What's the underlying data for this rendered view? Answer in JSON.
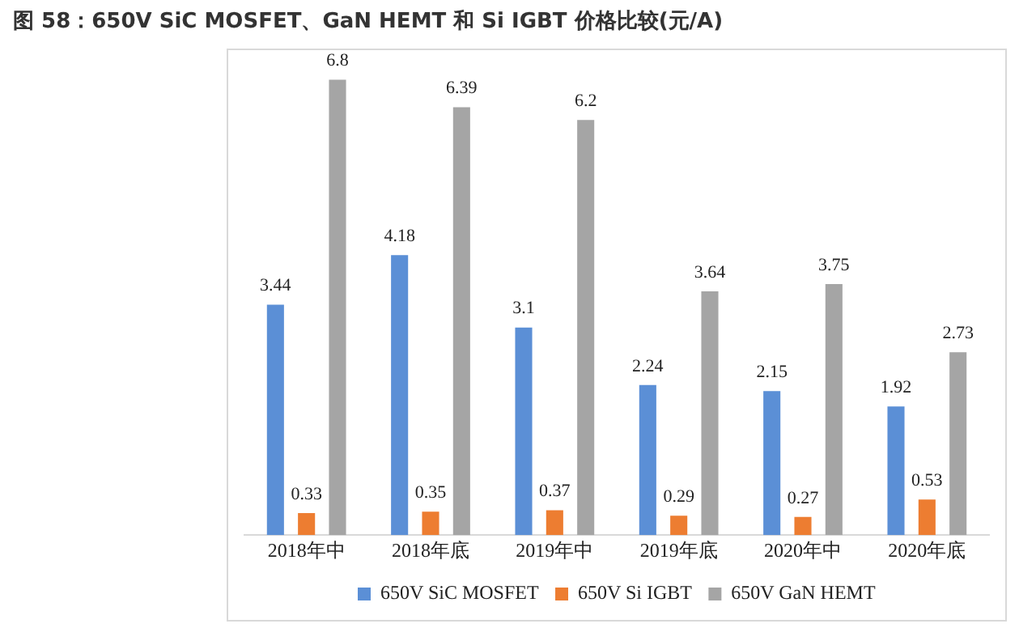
{
  "chart_data": {
    "type": "bar",
    "title": "图 58：650V SiC MOSFET、GaN HEMT 和 Si IGBT 价格比较(元/A)",
    "categories": [
      "2018年中",
      "2018年底",
      "2019年中",
      "2019年底",
      "2020年中",
      "2020年底"
    ],
    "series": [
      {
        "name": "650V SiC MOSFET",
        "color": "#5b8fd6",
        "values": [
          3.44,
          4.18,
          3.1,
          2.24,
          2.15,
          1.92
        ]
      },
      {
        "name": "650V Si IGBT",
        "color": "#ed7d31",
        "values": [
          0.33,
          0.35,
          0.37,
          0.29,
          0.27,
          0.53
        ]
      },
      {
        "name": "650V GaN HEMT",
        "color": "#a5a5a5",
        "values": [
          6.8,
          6.39,
          6.2,
          3.64,
          3.75,
          2.73
        ]
      }
    ],
    "data_labels": true,
    "legend": "bottom",
    "grid": false
  }
}
